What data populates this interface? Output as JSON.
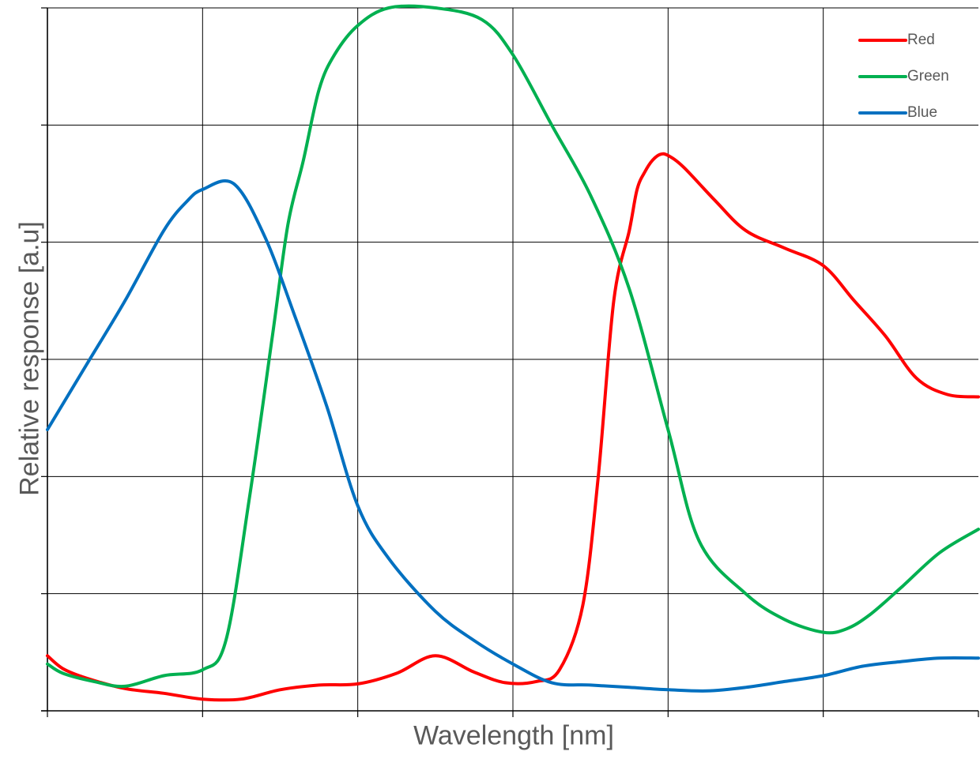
{
  "chart_data": {
    "type": "line",
    "title": "",
    "xlabel": "Wavelength [nm]",
    "ylabel": "Relative response [a.u]",
    "xlim": [
      0,
      6
    ],
    "ylim": [
      0,
      6
    ],
    "grid": true,
    "legend_position": "top-right",
    "series": [
      {
        "name": "Red",
        "color": "#ff0000",
        "x": [
          0,
          0.1,
          0.25,
          0.5,
          0.75,
          1.0,
          1.25,
          1.5,
          1.75,
          2.0,
          2.25,
          2.5,
          2.75,
          2.95,
          3.15,
          3.3,
          3.45,
          3.55,
          3.65,
          3.75,
          3.8,
          3.85,
          3.9,
          3.95,
          4.0,
          4.1,
          4.3,
          4.5,
          4.75,
          5.0,
          5.2,
          5.4,
          5.6,
          5.8,
          6.0
        ],
        "values": [
          0.47,
          0.36,
          0.28,
          0.19,
          0.15,
          0.1,
          0.1,
          0.18,
          0.22,
          0.23,
          0.32,
          0.47,
          0.33,
          0.24,
          0.25,
          0.35,
          0.9,
          2.0,
          3.5,
          4.1,
          4.45,
          4.6,
          4.7,
          4.75,
          4.74,
          4.64,
          4.36,
          4.1,
          3.95,
          3.8,
          3.5,
          3.2,
          2.84,
          2.7,
          2.68
        ]
      },
      {
        "name": "Green",
        "color": "#00b050",
        "x": [
          0,
          0.1,
          0.3,
          0.5,
          0.75,
          1.0,
          1.15,
          1.3,
          1.45,
          1.55,
          1.65,
          1.75,
          1.85,
          2.0,
          2.2,
          2.5,
          2.8,
          3.0,
          3.25,
          3.5,
          3.75,
          4.0,
          4.2,
          4.5,
          4.75,
          5.0,
          5.15,
          5.3,
          5.5,
          5.75,
          6.0
        ],
        "values": [
          0.4,
          0.32,
          0.25,
          0.21,
          0.3,
          0.35,
          0.6,
          1.8,
          3.2,
          4.15,
          4.7,
          5.3,
          5.6,
          5.85,
          6.0,
          6.0,
          5.9,
          5.6,
          5.0,
          4.4,
          3.6,
          2.4,
          1.45,
          1.0,
          0.78,
          0.67,
          0.7,
          0.82,
          1.05,
          1.35,
          1.55
        ]
      },
      {
        "name": "Blue",
        "color": "#0070c0",
        "x": [
          0,
          0.25,
          0.5,
          0.75,
          0.9,
          1.0,
          1.2,
          1.4,
          1.6,
          1.8,
          2.0,
          2.2,
          2.5,
          2.75,
          3.0,
          3.25,
          3.5,
          3.75,
          4.0,
          4.25,
          4.5,
          4.75,
          5.0,
          5.25,
          5.5,
          5.75,
          6.0
        ],
        "values": [
          2.4,
          2.95,
          3.5,
          4.1,
          4.35,
          4.45,
          4.5,
          4.05,
          3.35,
          2.6,
          1.75,
          1.3,
          0.85,
          0.6,
          0.4,
          0.24,
          0.22,
          0.2,
          0.18,
          0.17,
          0.2,
          0.25,
          0.3,
          0.38,
          0.42,
          0.45,
          0.45
        ]
      }
    ]
  }
}
